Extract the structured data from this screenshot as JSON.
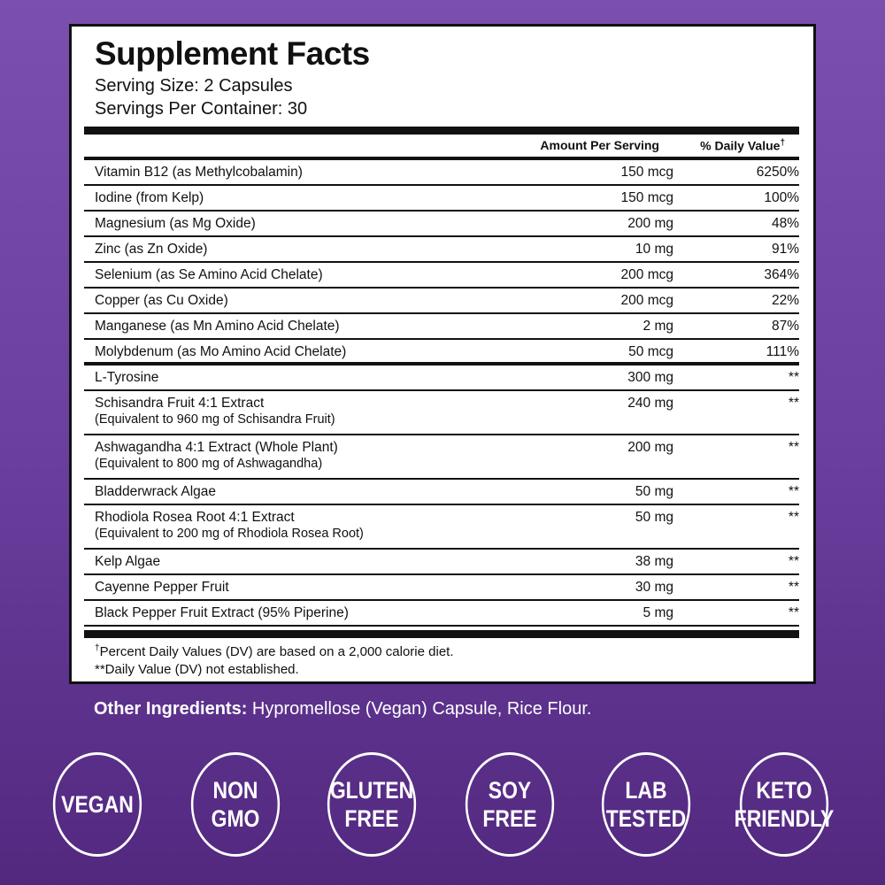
{
  "panel": {
    "title": "Supplement Facts",
    "serving_size": "Serving Size: 2 Capsules",
    "servings_per_container": "Servings Per Container: 30",
    "columns": {
      "amount": "Amount Per Serving",
      "daily_value": "% Daily Value",
      "daily_value_mark": "†"
    },
    "groups": [
      {
        "rows": [
          {
            "name": "Vitamin B12 (as Methylcobalamin)",
            "amount": "150 mcg",
            "dv": "6250%"
          },
          {
            "name": "Iodine (from Kelp)",
            "amount": "150 mcg",
            "dv": "100%"
          },
          {
            "name": "Magnesium (as Mg Oxide)",
            "amount": "200 mg",
            "dv": "48%"
          },
          {
            "name": "Zinc (as Zn Oxide)",
            "amount": "10 mg",
            "dv": "91%"
          },
          {
            "name": "Selenium (as Se Amino Acid Chelate)",
            "amount": "200 mcg",
            "dv": "364%"
          },
          {
            "name": "Copper (as Cu Oxide)",
            "amount": "200 mcg",
            "dv": "22%"
          },
          {
            "name": "Manganese (as Mn Amino Acid Chelate)",
            "amount": "2 mg",
            "dv": "87%"
          },
          {
            "name": "Molybdenum (as Mo Amino Acid Chelate)",
            "amount": "50 mcg",
            "dv": "111%"
          }
        ]
      },
      {
        "rows": [
          {
            "name": "L-Tyrosine",
            "amount": "300 mg",
            "dv": "**"
          },
          {
            "name": "Schisandra Fruit 4:1 Extract",
            "sub": "(Equivalent to 960 mg of Schisandra Fruit)",
            "amount": "240 mg",
            "dv": "**"
          },
          {
            "name": "Ashwagandha 4:1 Extract (Whole Plant)",
            "sub": "(Equivalent to 800 mg of Ashwagandha)",
            "amount": "200 mg",
            "dv": "**"
          },
          {
            "name": "Bladderwrack Algae",
            "amount": "50 mg",
            "dv": "**"
          },
          {
            "name": "Rhodiola Rosea Root 4:1 Extract",
            "sub": "(Equivalent to 200 mg of Rhodiola Rosea Root)",
            "amount": "50 mg",
            "dv": "**"
          },
          {
            "name": "Kelp Algae",
            "amount": "38 mg",
            "dv": "**"
          },
          {
            "name": "Cayenne Pepper Fruit",
            "amount": "30 mg",
            "dv": "**"
          },
          {
            "name": "Black Pepper Fruit Extract (95% Piperine)",
            "amount": "5 mg",
            "dv": "**"
          }
        ]
      }
    ],
    "footnotes": [
      {
        "mark": "†",
        "text": "Percent Daily Values (DV) are based on a 2,000 calorie diet."
      },
      {
        "text": "**Daily Value (DV) not established."
      }
    ]
  },
  "other_ingredients": {
    "label": "Other Ingredients:",
    "text": "Hypromellose (Vegan) Capsule, Rice Flour."
  },
  "badges": [
    {
      "lines": [
        "VEGAN"
      ]
    },
    {
      "lines": [
        "NON",
        "GMO"
      ]
    },
    {
      "lines": [
        "GLUTEN",
        "FREE"
      ]
    },
    {
      "lines": [
        "SOY",
        "FREE"
      ]
    },
    {
      "lines": [
        "LAB",
        "TESTED"
      ]
    },
    {
      "lines": [
        "KETO",
        "FRIENDLY"
      ]
    }
  ]
}
